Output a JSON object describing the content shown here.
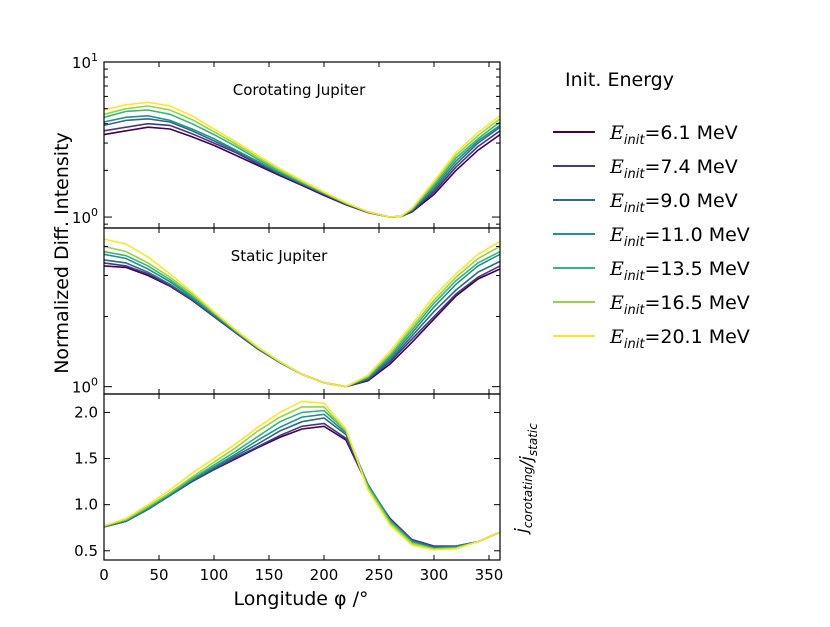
{
  "chart_data": [
    {
      "panel": "top",
      "type": "line",
      "title": "Corotating Jupiter",
      "yscale": "log",
      "ylim": [
        0.85,
        10
      ],
      "xlim": [
        0,
        360
      ],
      "ytick_labels": [
        "10^0",
        "10^1"
      ],
      "x": [
        0,
        20,
        40,
        60,
        80,
        100,
        120,
        140,
        160,
        180,
        200,
        220,
        240,
        260,
        270,
        280,
        300,
        320,
        340,
        360
      ],
      "series": [
        {
          "name": "E_init=6.1 MeV",
          "color": "#440154",
          "values": [
            3.4,
            3.6,
            3.8,
            3.7,
            3.3,
            2.9,
            2.5,
            2.15,
            1.85,
            1.6,
            1.38,
            1.2,
            1.07,
            1.0,
            1.01,
            1.08,
            1.4,
            2.0,
            2.7,
            3.4
          ]
        },
        {
          "name": "E_init=7.4 MeV",
          "color": "#443983",
          "values": [
            3.6,
            3.8,
            4.0,
            3.9,
            3.45,
            3.0,
            2.6,
            2.2,
            1.88,
            1.62,
            1.4,
            1.21,
            1.07,
            1.0,
            1.01,
            1.09,
            1.45,
            2.1,
            2.85,
            3.6
          ]
        },
        {
          "name": "E_init=9.0 MeV",
          "color": "#31688e",
          "values": [
            3.9,
            4.2,
            4.3,
            4.1,
            3.6,
            3.1,
            2.65,
            2.25,
            1.9,
            1.64,
            1.41,
            1.22,
            1.08,
            1.0,
            1.01,
            1.1,
            1.5,
            2.2,
            3.0,
            3.8
          ]
        },
        {
          "name": "E_init=11.0 MeV",
          "color": "#21918c",
          "values": [
            4.1,
            4.4,
            4.5,
            4.2,
            3.7,
            3.2,
            2.7,
            2.28,
            1.92,
            1.65,
            1.42,
            1.22,
            1.08,
            1.0,
            1.01,
            1.11,
            1.55,
            2.3,
            3.1,
            3.9
          ]
        },
        {
          "name": "E_init=13.5 MeV",
          "color": "#35b779",
          "values": [
            4.4,
            4.8,
            4.9,
            4.6,
            4.0,
            3.4,
            2.85,
            2.35,
            1.97,
            1.67,
            1.43,
            1.23,
            1.08,
            1.0,
            1.01,
            1.12,
            1.6,
            2.4,
            3.2,
            4.1
          ]
        },
        {
          "name": "E_init=16.5 MeV",
          "color": "#90d743",
          "values": [
            4.6,
            5.0,
            5.2,
            4.9,
            4.25,
            3.55,
            2.95,
            2.42,
            2.0,
            1.69,
            1.44,
            1.23,
            1.08,
            1.0,
            1.01,
            1.13,
            1.65,
            2.5,
            3.35,
            4.3
          ]
        },
        {
          "name": "E_init=20.1 MeV",
          "color": "#fde725",
          "values": [
            4.9,
            5.3,
            5.5,
            5.2,
            4.5,
            3.7,
            3.05,
            2.5,
            2.05,
            1.72,
            1.45,
            1.24,
            1.08,
            1.0,
            1.01,
            1.14,
            1.7,
            2.6,
            3.5,
            4.5
          ]
        }
      ]
    },
    {
      "panel": "middle",
      "type": "line",
      "title": "Static Jupiter",
      "yscale": "log",
      "ylim": [
        0.93,
        4.8
      ],
      "xlim": [
        0,
        360
      ],
      "ytick_labels": [
        "10^0"
      ],
      "x": [
        0,
        20,
        40,
        60,
        80,
        100,
        120,
        140,
        160,
        180,
        200,
        220,
        240,
        260,
        280,
        300,
        320,
        340,
        360
      ],
      "series": [
        {
          "name": "E_init=6.1 MeV",
          "color": "#440154",
          "values": [
            3.3,
            3.25,
            3.0,
            2.7,
            2.35,
            2.0,
            1.7,
            1.45,
            1.27,
            1.13,
            1.04,
            1.0,
            1.06,
            1.25,
            1.55,
            1.95,
            2.45,
            2.9,
            3.2
          ]
        },
        {
          "name": "E_init=7.4 MeV",
          "color": "#443983",
          "values": [
            3.4,
            3.3,
            3.05,
            2.72,
            2.36,
            2.0,
            1.7,
            1.45,
            1.27,
            1.13,
            1.04,
            1.0,
            1.07,
            1.28,
            1.6,
            2.0,
            2.5,
            2.95,
            3.3
          ]
        },
        {
          "name": "E_init=9.0 MeV",
          "color": "#31688e",
          "values": [
            3.5,
            3.4,
            3.1,
            2.75,
            2.38,
            2.02,
            1.71,
            1.46,
            1.27,
            1.13,
            1.04,
            1.0,
            1.08,
            1.3,
            1.65,
            2.1,
            2.6,
            3.1,
            3.45
          ]
        },
        {
          "name": "E_init=11.0 MeV",
          "color": "#21918c",
          "values": [
            3.7,
            3.55,
            3.2,
            2.82,
            2.42,
            2.04,
            1.72,
            1.46,
            1.27,
            1.13,
            1.04,
            1.0,
            1.09,
            1.33,
            1.7,
            2.2,
            2.75,
            3.3,
            3.7
          ]
        },
        {
          "name": "E_init=13.5 MeV",
          "color": "#35b779",
          "values": [
            3.8,
            3.65,
            3.3,
            2.88,
            2.45,
            2.06,
            1.73,
            1.47,
            1.28,
            1.13,
            1.04,
            1.0,
            1.1,
            1.36,
            1.75,
            2.28,
            2.85,
            3.4,
            3.8
          ]
        },
        {
          "name": "E_init=16.5 MeV",
          "color": "#90d743",
          "values": [
            4.0,
            3.8,
            3.4,
            2.95,
            2.5,
            2.08,
            1.74,
            1.47,
            1.28,
            1.13,
            1.04,
            1.0,
            1.11,
            1.38,
            1.8,
            2.35,
            2.95,
            3.55,
            4.0
          ]
        },
        {
          "name": "E_init=20.1 MeV",
          "color": "#fde725",
          "values": [
            4.3,
            4.1,
            3.6,
            3.05,
            2.55,
            2.1,
            1.75,
            1.48,
            1.28,
            1.13,
            1.04,
            1.0,
            1.12,
            1.42,
            1.85,
            2.45,
            3.05,
            3.7,
            4.2
          ]
        }
      ]
    },
    {
      "panel": "bottom",
      "type": "line",
      "title": "",
      "yscale": "linear",
      "ylim": [
        0.4,
        2.2
      ],
      "xlim": [
        0,
        360
      ],
      "ylabel": "j_corotating/j_static",
      "ytick_labels": [
        "0.5",
        "1.0",
        "1.5",
        "2.0"
      ],
      "x": [
        0,
        20,
        40,
        60,
        80,
        100,
        120,
        140,
        160,
        180,
        200,
        220,
        240,
        260,
        280,
        300,
        320,
        340,
        360
      ],
      "series": [
        {
          "name": "E_init=6.1 MeV",
          "color": "#440154",
          "values": [
            0.76,
            0.82,
            0.95,
            1.1,
            1.25,
            1.38,
            1.5,
            1.62,
            1.73,
            1.82,
            1.85,
            1.7,
            1.2,
            0.85,
            0.62,
            0.55,
            0.55,
            0.6,
            0.7
          ]
        },
        {
          "name": "E_init=7.4 MeV",
          "color": "#443983",
          "values": [
            0.76,
            0.82,
            0.95,
            1.1,
            1.25,
            1.38,
            1.51,
            1.63,
            1.75,
            1.85,
            1.88,
            1.72,
            1.2,
            0.84,
            0.62,
            0.55,
            0.55,
            0.6,
            0.7
          ]
        },
        {
          "name": "E_init=9.0 MeV",
          "color": "#31688e",
          "values": [
            0.76,
            0.82,
            0.95,
            1.1,
            1.26,
            1.4,
            1.53,
            1.66,
            1.8,
            1.9,
            1.94,
            1.76,
            1.22,
            0.84,
            0.61,
            0.54,
            0.55,
            0.6,
            0.7
          ]
        },
        {
          "name": "E_init=11.0 MeV",
          "color": "#21918c",
          "values": [
            0.76,
            0.83,
            0.96,
            1.11,
            1.27,
            1.41,
            1.55,
            1.7,
            1.84,
            1.95,
            1.98,
            1.78,
            1.22,
            0.83,
            0.6,
            0.53,
            0.54,
            0.6,
            0.7
          ]
        },
        {
          "name": "E_init=13.5 MeV",
          "color": "#35b779",
          "values": [
            0.77,
            0.83,
            0.97,
            1.12,
            1.28,
            1.43,
            1.58,
            1.74,
            1.9,
            2.0,
            2.02,
            1.8,
            1.2,
            0.82,
            0.59,
            0.52,
            0.53,
            0.6,
            0.7
          ]
        },
        {
          "name": "E_init=16.5 MeV",
          "color": "#90d743",
          "values": [
            0.77,
            0.84,
            0.98,
            1.13,
            1.3,
            1.46,
            1.62,
            1.8,
            1.95,
            2.06,
            2.06,
            1.8,
            1.18,
            0.8,
            0.58,
            0.52,
            0.53,
            0.6,
            0.7
          ]
        },
        {
          "name": "E_init=20.1 MeV",
          "color": "#fde725",
          "values": [
            0.77,
            0.85,
            1.0,
            1.16,
            1.34,
            1.5,
            1.66,
            1.84,
            2.0,
            2.12,
            2.1,
            1.82,
            1.16,
            0.78,
            0.56,
            0.51,
            0.52,
            0.6,
            0.7
          ]
        }
      ]
    }
  ],
  "figure": {
    "shared_ylabel": "Normalized Diff. Intensity",
    "xlabel": "Longitude φ /°",
    "xtick_labels": [
      "0",
      "50",
      "100",
      "150",
      "200",
      "250",
      "300",
      "350"
    ],
    "xtick_values": [
      0,
      50,
      100,
      150,
      200,
      250,
      300,
      350
    ]
  },
  "legend": {
    "title": "Init. Energy",
    "placement": "right",
    "entries": [
      {
        "sym": "E",
        "sub": "init",
        "value": "=6.1 MeV",
        "color": "#440154"
      },
      {
        "sym": "E",
        "sub": "init",
        "value": "=7.4 MeV",
        "color": "#443983"
      },
      {
        "sym": "E",
        "sub": "init",
        "value": "=9.0 MeV",
        "color": "#31688e"
      },
      {
        "sym": "E",
        "sub": "init",
        "value": "=11.0 MeV",
        "color": "#21918c"
      },
      {
        "sym": "E",
        "sub": "init",
        "value": "=13.5 MeV",
        "color": "#35b779"
      },
      {
        "sym": "E",
        "sub": "init",
        "value": "=16.5 MeV",
        "color": "#90d743"
      },
      {
        "sym": "E",
        "sub": "init",
        "value": "=20.1 MeV",
        "color": "#fde725"
      }
    ]
  }
}
